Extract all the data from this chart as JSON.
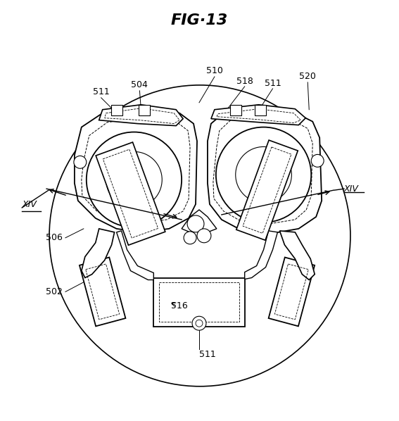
{
  "title": "FIG·13",
  "bg_color": "#ffffff",
  "line_color": "#000000",
  "figsize": [
    5.67,
    5.98
  ],
  "dpi": 100
}
